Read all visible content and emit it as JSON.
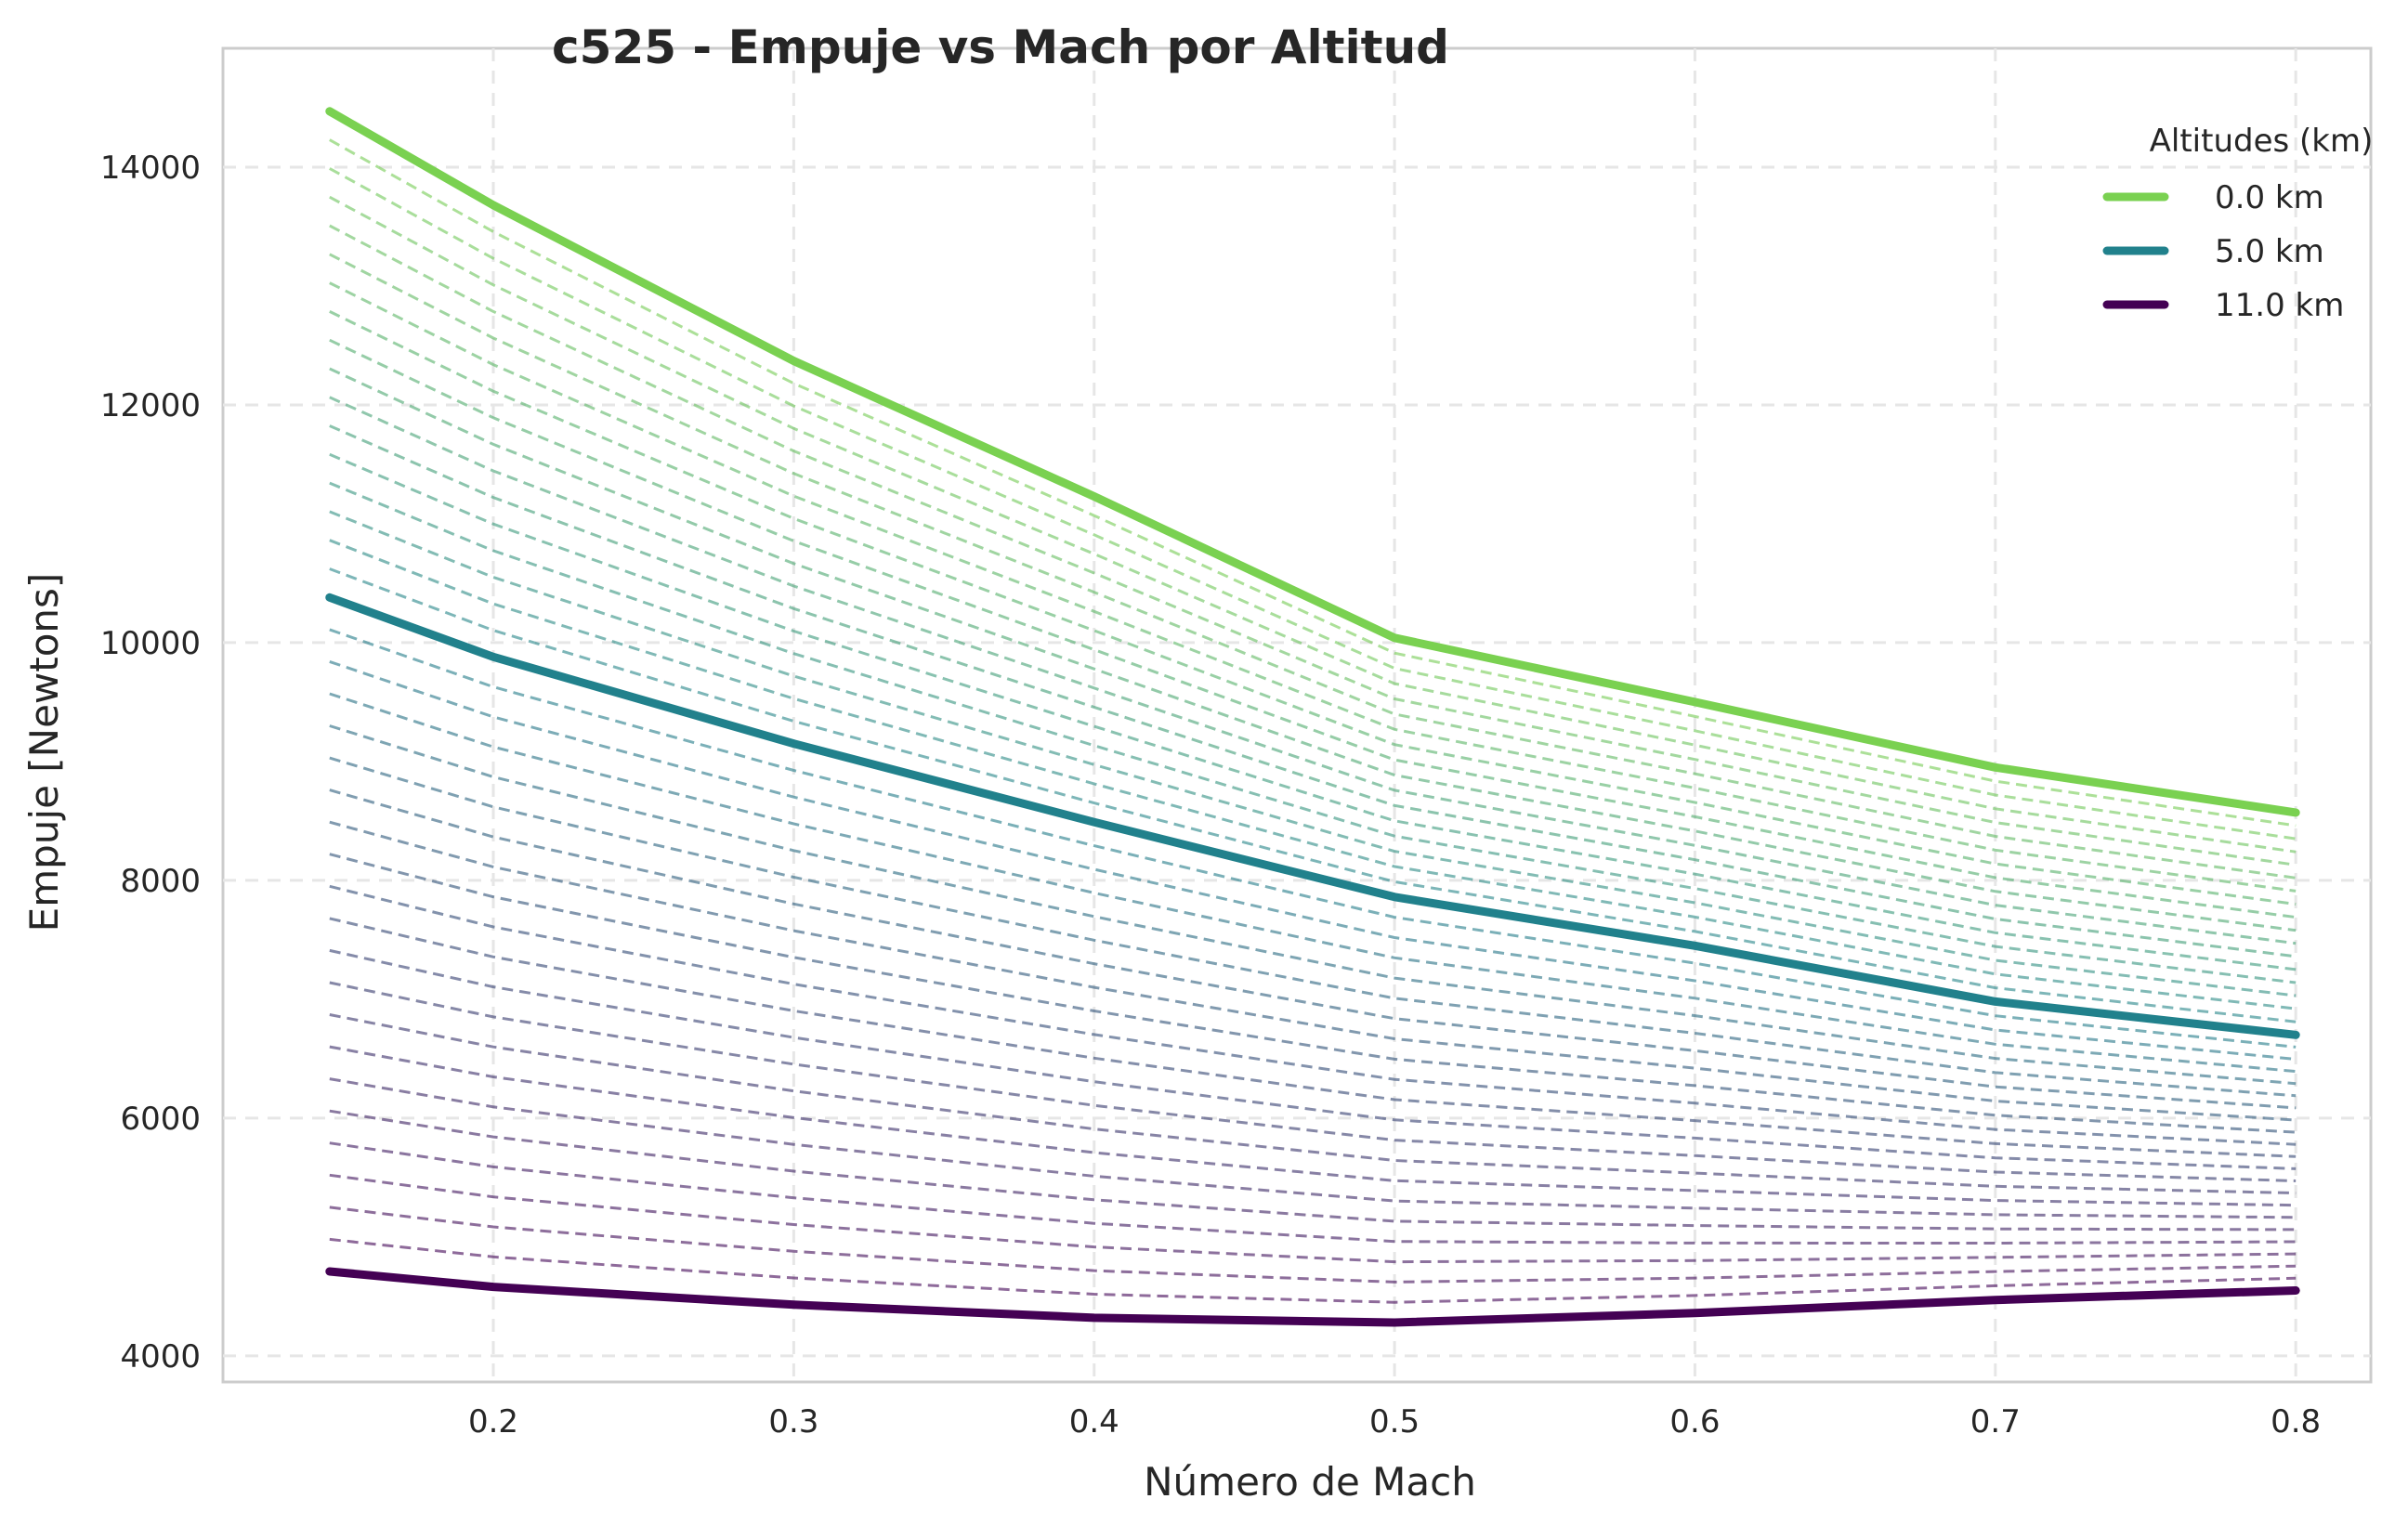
{
  "chart_data": {
    "type": "line",
    "title": "c525 - Empuje vs Mach por Altitud",
    "xlabel": "Número de Mach",
    "ylabel": "Empuje [Newtons]",
    "xlim": [
      0.11,
      0.825
    ],
    "ylim": [
      3780,
      15000
    ],
    "xticks": [
      0.2,
      0.3,
      0.4,
      0.5,
      0.6,
      0.7,
      0.8
    ],
    "xtick_labels": [
      "0.2",
      "0.3",
      "0.4",
      "0.5",
      "0.6",
      "0.7",
      "0.8"
    ],
    "yticks": [
      4000,
      6000,
      8000,
      10000,
      12000,
      14000
    ],
    "ytick_labels": [
      "4000",
      "6000",
      "8000",
      "10000",
      "12000",
      "14000"
    ],
    "grid": true,
    "legend": {
      "title": "Altitudes (km)",
      "placement": "top-right",
      "entries": [
        "0.0 km",
        "5.0 km",
        "11.0 km"
      ]
    },
    "x": [
      0.1455,
      0.2,
      0.3,
      0.4,
      0.5,
      0.6,
      0.7,
      0.8
    ],
    "series": [
      {
        "name": "0.0 km",
        "color": "#7ad151",
        "style": "solid",
        "values": [
          14470,
          13680,
          12370,
          11230,
          10040,
          9500,
          8950,
          8570
        ]
      },
      {
        "name": "5.0 km",
        "color": "#21818c",
        "style": "solid",
        "values": [
          10380,
          9880,
          9150,
          8490,
          7860,
          7450,
          6980,
          6700
        ]
      },
      {
        "name": "11.0 km",
        "color": "#440154",
        "style": "solid",
        "values": [
          4710,
          4580,
          4430,
          4320,
          4280,
          4360,
          4470,
          4550
        ]
      }
    ],
    "intermediate_series_note": "Líneas discontinuas entre altitudes",
    "intermediate_series": {
      "style": "dashed",
      "count_upper": 16,
      "count_lower": 20,
      "color_top": "#7ad151",
      "color_mid": "#21818c",
      "color_bottom": "#440154"
    }
  }
}
